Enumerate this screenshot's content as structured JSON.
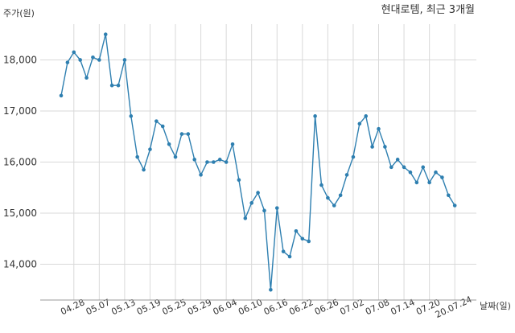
{
  "chart_data": {
    "type": "line",
    "title": "현대로템, 최근 3개월",
    "ylabel": "주가(원)",
    "xlabel": "날짜(일)",
    "ylim": [
      13300,
      18700
    ],
    "yticks": [
      14000,
      15000,
      16000,
      17000,
      18000
    ],
    "ytick_labels": [
      "14,000",
      "15,000",
      "16,000",
      "17,000",
      "18,000"
    ],
    "xtick_labels": [
      "04.28",
      "05.07",
      "05.13",
      "05.19",
      "05.25",
      "05.29",
      "06.04",
      "06.10",
      "06.16",
      "06.22",
      "06.26",
      "07.02",
      "07.08",
      "07.14",
      "07.20",
      "20.07.24"
    ],
    "xtick_index": [
      2,
      6,
      10,
      14,
      18,
      22,
      26,
      30,
      34,
      38,
      42,
      46,
      50,
      54,
      58,
      62
    ],
    "grid": true,
    "values": [
      17300,
      17950,
      18150,
      18000,
      17650,
      18050,
      18000,
      18500,
      17500,
      17500,
      18000,
      16900,
      16100,
      15850,
      16250,
      16800,
      16700,
      16350,
      16100,
      16550,
      16550,
      16050,
      15750,
      16000,
      16000,
      16050,
      16000,
      16350,
      15650,
      14900,
      15200,
      15400,
      15050,
      13500,
      15100,
      14250,
      14150,
      14650,
      14500,
      14450,
      16900,
      15550,
      15300,
      15150,
      15350,
      15750,
      16100,
      16750,
      16900,
      16300,
      16650,
      16300,
      15900,
      16050,
      15900,
      15800,
      15600,
      15900,
      15600,
      15800,
      15700,
      15350,
      15150
    ]
  }
}
